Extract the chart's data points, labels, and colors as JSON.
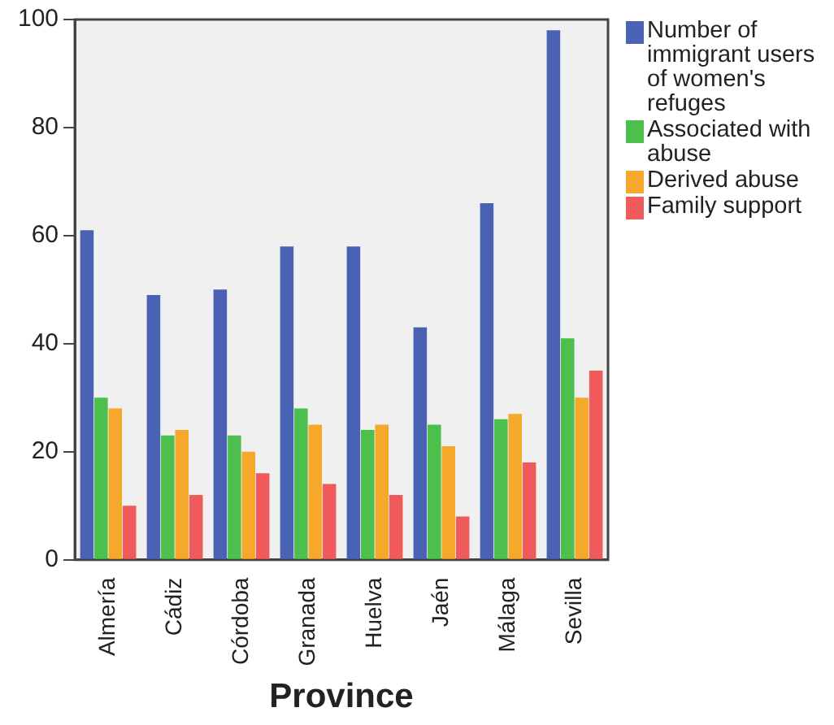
{
  "chart_data": {
    "type": "bar",
    "xlabel": "Province",
    "categories": [
      "Almería",
      "Cádiz",
      "Córdoba",
      "Granada",
      "Huelva",
      "Jaén",
      "Málaga",
      "Sevilla"
    ],
    "series": [
      {
        "name": "Number of immigrant users of women's refuges",
        "color": "#4a62b4",
        "values": [
          61,
          49,
          50,
          58,
          58,
          43,
          66,
          98
        ]
      },
      {
        "name": "Associated with abuse",
        "color": "#4cbf4c",
        "values": [
          30,
          23,
          23,
          28,
          24,
          25,
          26,
          41
        ]
      },
      {
        "name": "Derived abuse",
        "color": "#f5a82a",
        "values": [
          28,
          24,
          20,
          25,
          25,
          21,
          27,
          30
        ]
      },
      {
        "name": "Family support",
        "color": "#f05a5a",
        "values": [
          10,
          12,
          16,
          14,
          12,
          8,
          18,
          35
        ]
      }
    ],
    "ylim": [
      0,
      100
    ],
    "yticks": [
      0,
      20,
      40,
      60,
      80,
      100
    ],
    "grid": false,
    "legend": "right"
  }
}
